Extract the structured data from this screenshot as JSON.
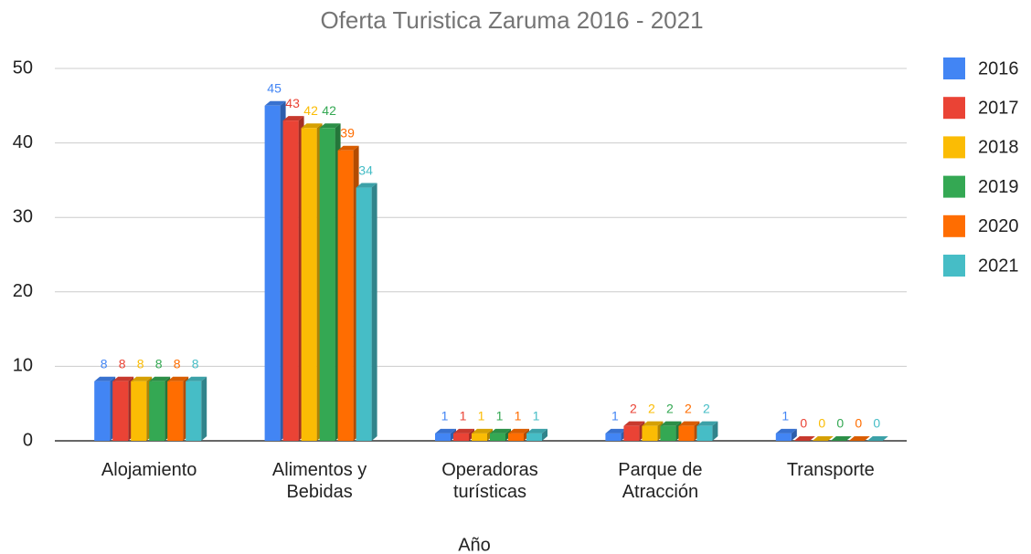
{
  "chart_data": {
    "type": "bar",
    "title": "Oferta Turistica Zaruma 2016 - 2021",
    "x_label": "Año",
    "categories": [
      "Alojamiento",
      "Alimentos y Bebidas",
      "Operadoras turísticas",
      "Parque de Atracción",
      "Transporte"
    ],
    "series": [
      {
        "name": "2016",
        "color": "#4285f4",
        "values": [
          8,
          45,
          1,
          1,
          1
        ]
      },
      {
        "name": "2017",
        "color": "#ea4335",
        "values": [
          8,
          43,
          1,
          2,
          0
        ]
      },
      {
        "name": "2018",
        "color": "#fbbc04",
        "values": [
          8,
          42,
          1,
          2,
          0
        ]
      },
      {
        "name": "2019",
        "color": "#34a853",
        "values": [
          8,
          42,
          1,
          2,
          0
        ]
      },
      {
        "name": "2020",
        "color": "#ff6d01",
        "values": [
          8,
          39,
          1,
          2,
          0
        ]
      },
      {
        "name": "2021",
        "color": "#46bdc6",
        "values": [
          8,
          34,
          1,
          2,
          0
        ]
      }
    ],
    "ylim": [
      0,
      50
    ],
    "yticks": [
      0,
      10,
      20,
      30,
      40,
      50
    ],
    "grid": true,
    "legend": "right"
  }
}
